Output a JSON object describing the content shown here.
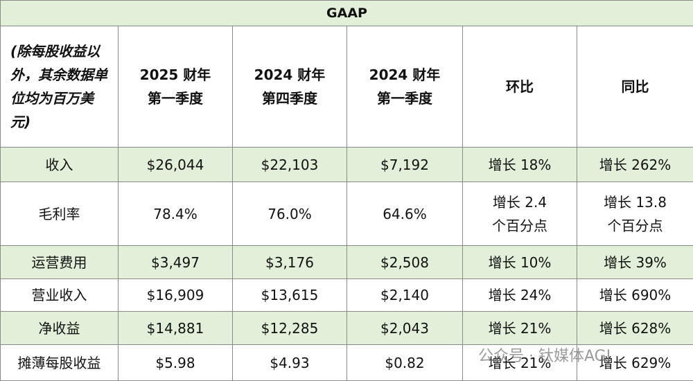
{
  "header": {
    "title": "GAAP",
    "columns": [
      [
        "(除每股收益以",
        "外，其余数据单",
        "位均为百万美",
        "元)"
      ],
      [
        "2025 财年",
        "第一季度"
      ],
      [
        "2024 财年",
        "第四季度"
      ],
      [
        "2024 财年",
        "第一季度"
      ],
      [
        "环比"
      ],
      [
        "同比"
      ]
    ]
  },
  "table": {
    "rows": [
      [
        [
          "收入"
        ],
        [
          "$26,044"
        ],
        [
          "$22,103"
        ],
        [
          "$7,192"
        ],
        [
          "增长 18%"
        ],
        [
          "增长 262%"
        ]
      ],
      [
        [
          "毛利率"
        ],
        [
          "78.4%"
        ],
        [
          "76.0%"
        ],
        [
          "64.6%"
        ],
        [
          "增长 2.4",
          "个百分点"
        ],
        [
          "增长 13.8",
          "个百分点"
        ]
      ],
      [
        [
          "运营费用"
        ],
        [
          "$3,497"
        ],
        [
          "$3,176"
        ],
        [
          "$2,508"
        ],
        [
          "增长 10%"
        ],
        [
          "增长 39%"
        ]
      ],
      [
        [
          "营业收入"
        ],
        [
          "$16,909"
        ],
        [
          "$13,615"
        ],
        [
          "$2,140"
        ],
        [
          "增长 24%"
        ],
        [
          "增长 690%"
        ]
      ],
      [
        [
          "净收益"
        ],
        [
          "$14,881"
        ],
        [
          "$12,285"
        ],
        [
          "$2,043"
        ],
        [
          "增长 21%"
        ],
        [
          "增长 628%"
        ]
      ],
      [
        [
          "摊薄每股收益"
        ],
        [
          "$5.98"
        ],
        [
          "$4.93"
        ],
        [
          "$0.82"
        ],
        [
          "增长 21%"
        ],
        [
          "增长 629%"
        ]
      ]
    ]
  },
  "watermark": "公众号 · 钛媒体AGI"
}
